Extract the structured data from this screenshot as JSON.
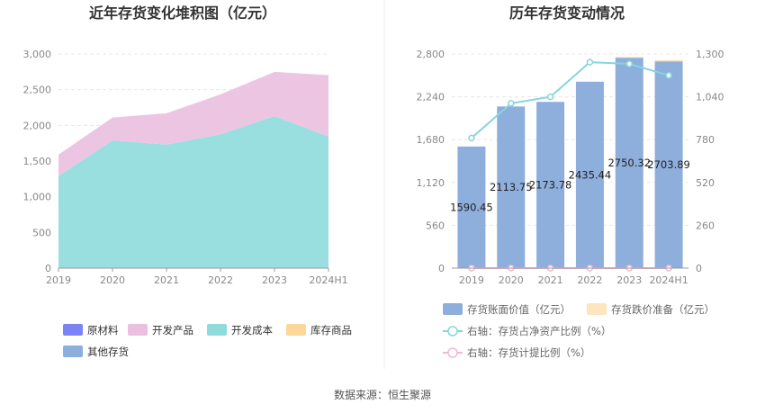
{
  "chart_data": [
    {
      "type": "area",
      "title": "近年存货变化堆积图（亿元）",
      "x": [
        "2019",
        "2020",
        "2021",
        "2022",
        "2023",
        "2024H1"
      ],
      "yticks": [
        "0",
        "500",
        "1,000",
        "1,500",
        "2,000",
        "2,500",
        "3,000"
      ],
      "ylim": [
        0,
        3000
      ],
      "stacked": true,
      "series": [
        {
          "name": "原材料",
          "color": "#7b83f5",
          "values": [
            0,
            0,
            0,
            0,
            0,
            0
          ]
        },
        {
          "name": "开发产品",
          "color": "#eabfe0",
          "values": [
            300,
            320,
            440,
            560,
            620,
            860
          ]
        },
        {
          "name": "开发成本",
          "color": "#8fdbdc",
          "values": [
            1290,
            1790,
            1730,
            1875,
            2130,
            1844
          ]
        },
        {
          "name": "库存商品",
          "color": "#fcd79a",
          "values": [
            0,
            0,
            0,
            0,
            0,
            0
          ]
        },
        {
          "name": "其他存货",
          "color": "#8eaedc",
          "values": [
            0,
            0,
            0,
            0,
            0,
            0
          ]
        }
      ],
      "legend_position": "bottom"
    },
    {
      "type": "bar",
      "title": "历年存货变动情况",
      "categories": [
        "2019",
        "2020",
        "2021",
        "2022",
        "2023",
        "2024H1"
      ],
      "ylim": [
        0,
        2800
      ],
      "yticks": [
        "0",
        "560",
        "1,120",
        "1,680",
        "2,240",
        "2,800"
      ],
      "y2lim": [
        0,
        1300
      ],
      "y2ticks": [
        "0",
        "260",
        "520",
        "780",
        "1,040",
        "1,300"
      ],
      "series": [
        {
          "name": "存货账面价值（亿元）",
          "kind": "bar",
          "color": "#8eaedc",
          "values": [
            1590.45,
            2113.75,
            2173.78,
            2435.44,
            2750.32,
            2703.89
          ],
          "labels": [
            "1590.45",
            "2113.75",
            "2173.78",
            "2435.44",
            "2750.32",
            "2703.89"
          ]
        },
        {
          "name": "存货跌价准备（亿元）",
          "kind": "bar",
          "color": "#fde5bf",
          "values": [
            0,
            0,
            0,
            8,
            15,
            20
          ]
        },
        {
          "name": "右轴：存货占净资产比例（%）",
          "kind": "line",
          "axis": "right",
          "color": "#86d5dc",
          "values": [
            790,
            1000,
            1040,
            1250,
            1240,
            1170
          ]
        },
        {
          "name": "右轴：存货计提比例（%）",
          "kind": "line",
          "axis": "right",
          "color": "#f0b8d4",
          "values": [
            0,
            0,
            0,
            0,
            0,
            0
          ]
        }
      ],
      "legend_position": "bottom"
    }
  ],
  "footer": {
    "source": "数据来源：恒生聚源"
  }
}
